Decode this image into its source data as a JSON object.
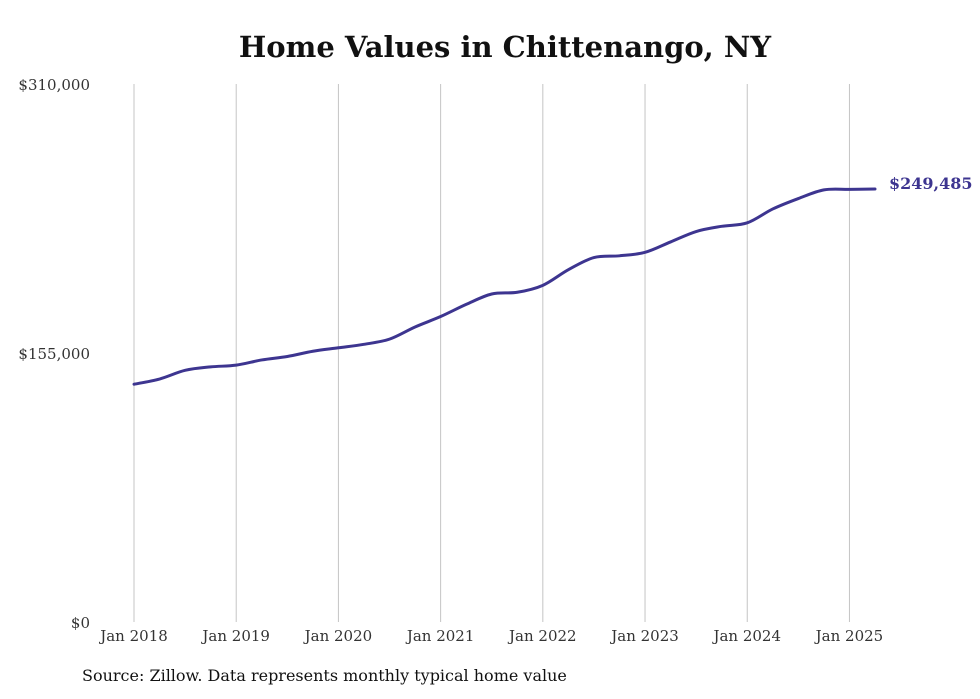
{
  "chart_data": {
    "type": "line",
    "title": "Home Values in Chittenango, NY",
    "source": "Source: Zillow. Data represents monthly typical home value",
    "ylim": [
      0,
      310000
    ],
    "xlim": [
      2018.0,
      2025.25
    ],
    "y_ticks": [
      {
        "value": 0,
        "label": "$0"
      },
      {
        "value": 155000,
        "label": "$155,000"
      },
      {
        "value": 310000,
        "label": "$310,000"
      }
    ],
    "x_ticks": [
      {
        "value": 2018,
        "label": "Jan 2018"
      },
      {
        "value": 2019,
        "label": "Jan 2019"
      },
      {
        "value": 2020,
        "label": "Jan 2020"
      },
      {
        "value": 2021,
        "label": "Jan 2021"
      },
      {
        "value": 2022,
        "label": "Jan 2022"
      },
      {
        "value": 2023,
        "label": "Jan 2023"
      },
      {
        "value": 2024,
        "label": "Jan 2024"
      },
      {
        "value": 2025,
        "label": "Jan 2025"
      }
    ],
    "grid": {
      "vertical": true,
      "horizontal": false
    },
    "line_color": "#3d3590",
    "end_label": "$249,485",
    "series": [
      {
        "x": [
          "2018-01",
          "2018-04",
          "2018-07",
          "2018-10",
          "2019-01",
          "2019-04",
          "2019-07",
          "2019-10",
          "2020-01",
          "2020-04",
          "2020-07",
          "2020-10",
          "2021-01",
          "2021-04",
          "2021-07",
          "2021-10",
          "2022-01",
          "2022-04",
          "2022-07",
          "2022-10",
          "2023-01",
          "2023-04",
          "2023-07",
          "2023-10",
          "2024-01",
          "2024-04",
          "2024-07",
          "2024-10",
          "2025-01",
          "2025-04"
        ],
        "values": [
          137000,
          140000,
          145000,
          147000,
          148000,
          151000,
          153000,
          156000,
          158000,
          160000,
          163000,
          170000,
          176000,
          183000,
          189000,
          190000,
          194000,
          203000,
          210000,
          211000,
          213000,
          219000,
          225000,
          228000,
          230000,
          238000,
          244000,
          249000,
          249300,
          249485
        ]
      }
    ]
  }
}
